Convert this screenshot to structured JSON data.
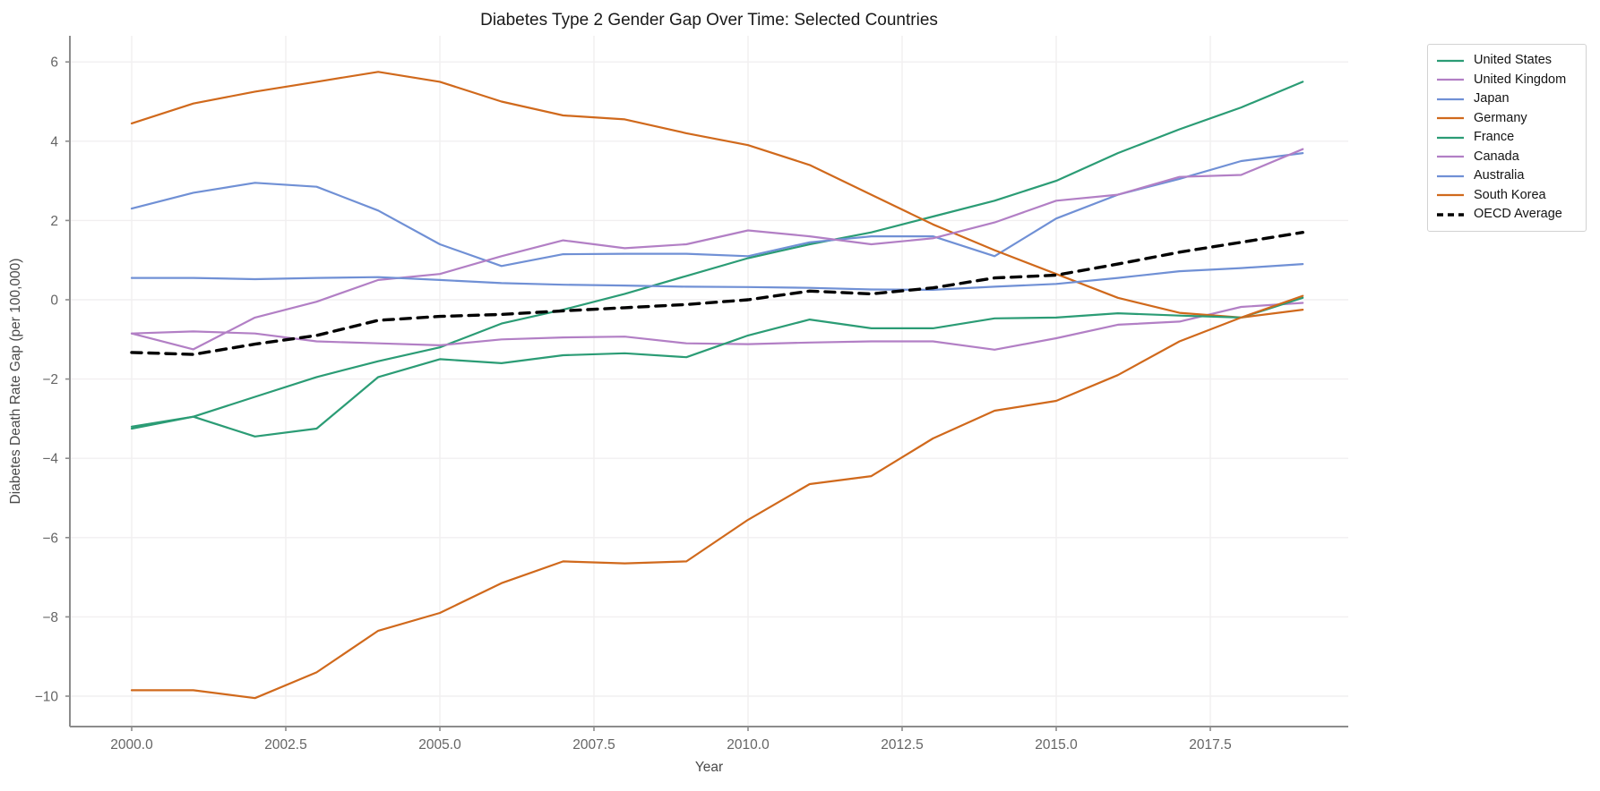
{
  "title": "Diabetes Type 2 Gender Gap Over Time: Selected Countries",
  "axes": {
    "xlabel": "Year",
    "ylabel": "Diabetes Death Rate Gap (per 100,000)",
    "x_tick_labels": [
      "2000.0",
      "2002.5",
      "2005.0",
      "2007.5",
      "2010.0",
      "2012.5",
      "2015.0",
      "2017.5"
    ],
    "y_tick_labels": [
      "6",
      "4",
      "2",
      "0",
      "−2",
      "−4",
      "−6",
      "−8",
      "−10"
    ]
  },
  "colors": {
    "green": "#2b9c75",
    "purple": "#b27fc5",
    "blue": "#7090d5",
    "orange": "#d0691c",
    "black": "#000000",
    "grid": "#f1eff0",
    "spine": "#8c8c8c",
    "tick_text": "#656565",
    "axis_label_text": "#4a4a4a",
    "title_text": "#1a1a1a"
  },
  "chart_data": {
    "type": "line",
    "title": "Diabetes Type 2 Gender Gap Over Time: Selected Countries",
    "xlabel": "Year",
    "ylabel": "Diabetes Death Rate Gap (per 100,000)",
    "grid": true,
    "legend_position": "outside-top-right",
    "xlim": [
      1999.0,
      2019.75
    ],
    "ylim": [
      -10.77,
      6.66
    ],
    "x_ticks": [
      2000.0,
      2002.5,
      2005.0,
      2007.5,
      2010.0,
      2012.5,
      2015.0,
      2017.5
    ],
    "y_ticks": [
      6,
      4,
      2,
      0,
      -2,
      -4,
      -6,
      -8,
      -10
    ],
    "x": [
      2000,
      2001,
      2002,
      2003,
      2004,
      2005,
      2006,
      2007,
      2008,
      2009,
      2010,
      2011,
      2012,
      2013,
      2014,
      2015,
      2016,
      2017,
      2018,
      2019
    ],
    "series": [
      {
        "name": "United States",
        "color_key": "green",
        "dash": false,
        "values": [
          -3.2,
          -2.95,
          -2.45,
          -1.95,
          -1.55,
          -1.2,
          -0.6,
          -0.25,
          0.15,
          0.6,
          1.05,
          1.4,
          1.7,
          2.1,
          2.5,
          3.0,
          3.7,
          4.3,
          4.85,
          5.5
        ]
      },
      {
        "name": "United Kingdom",
        "color_key": "purple",
        "dash": false,
        "values": [
          -0.85,
          -0.8,
          -0.85,
          -1.05,
          -1.1,
          -1.15,
          -1.0,
          -0.95,
          -0.93,
          -1.1,
          -1.12,
          -1.08,
          -1.05,
          -1.05,
          -1.26,
          -0.97,
          -0.63,
          -0.55,
          -0.18,
          -0.08
        ]
      },
      {
        "name": "Japan",
        "color_key": "blue",
        "dash": false,
        "values": [
          2.3,
          2.7,
          2.95,
          2.85,
          2.25,
          1.4,
          0.85,
          1.15,
          1.16,
          1.16,
          1.1,
          1.45,
          1.6,
          1.6,
          1.1,
          2.05,
          2.65,
          3.05,
          3.5,
          3.7
        ]
      },
      {
        "name": "Germany",
        "color_key": "orange",
        "dash": false,
        "values": [
          4.45,
          4.95,
          5.25,
          5.5,
          5.75,
          5.5,
          5.0,
          4.65,
          4.55,
          4.2,
          3.9,
          3.4,
          2.65,
          1.9,
          1.25,
          0.65,
          0.05,
          -0.33,
          -0.45,
          -0.25
        ]
      },
      {
        "name": "France",
        "color_key": "green",
        "dash": false,
        "values": [
          -3.25,
          -2.95,
          -3.45,
          -3.25,
          -1.95,
          -1.5,
          -1.6,
          -1.4,
          -1.35,
          -1.45,
          -0.9,
          -0.5,
          -0.72,
          -0.72,
          -0.47,
          -0.45,
          -0.34,
          -0.4,
          -0.45,
          0.05
        ]
      },
      {
        "name": "Canada",
        "color_key": "purple",
        "dash": false,
        "values": [
          -0.85,
          -1.25,
          -0.45,
          -0.05,
          0.5,
          0.65,
          1.1,
          1.5,
          1.3,
          1.4,
          1.75,
          1.6,
          1.4,
          1.55,
          1.95,
          2.5,
          2.65,
          3.1,
          3.15,
          3.8
        ]
      },
      {
        "name": "Australia",
        "color_key": "blue",
        "dash": false,
        "values": [
          0.55,
          0.55,
          0.52,
          0.55,
          0.57,
          0.5,
          0.42,
          0.38,
          0.36,
          0.33,
          0.32,
          0.3,
          0.26,
          0.25,
          0.33,
          0.4,
          0.55,
          0.72,
          0.8,
          0.9
        ]
      },
      {
        "name": "South Korea",
        "color_key": "orange",
        "dash": false,
        "values": [
          -9.85,
          -9.85,
          -10.05,
          -9.4,
          -8.35,
          -7.9,
          -7.15,
          -6.6,
          -6.65,
          -6.6,
          -5.55,
          -4.65,
          -4.45,
          -3.5,
          -2.8,
          -2.55,
          -1.9,
          -1.05,
          -0.45,
          0.1
        ]
      },
      {
        "name": "OECD Average",
        "color_key": "black",
        "dash": true,
        "values": [
          -1.33,
          -1.38,
          -1.12,
          -0.9,
          -0.52,
          -0.42,
          -0.37,
          -0.28,
          -0.2,
          -0.12,
          0.0,
          0.22,
          0.15,
          0.3,
          0.55,
          0.62,
          0.9,
          1.2,
          1.45,
          1.7
        ]
      }
    ]
  }
}
